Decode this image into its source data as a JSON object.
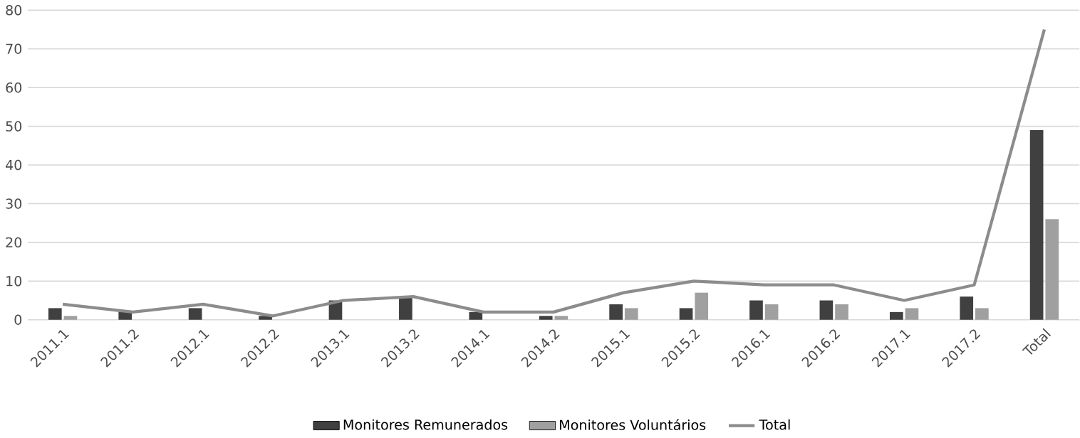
{
  "chart_data": {
    "type": "bar",
    "categories": [
      "2011.1",
      "2011.2",
      "2012.1",
      "2012.2",
      "2013.1",
      "2013.2",
      "2014.1",
      "2014.2",
      "2015.1",
      "2015.2",
      "2016.1",
      "2016.2",
      "2017.1",
      "2017.2",
      "Total"
    ],
    "series": [
      {
        "name": "Monitores Remunerados",
        "color": "#404040",
        "values": [
          3,
          2,
          3,
          1,
          5,
          6,
          2,
          1,
          4,
          3,
          5,
          5,
          2,
          6,
          49
        ]
      },
      {
        "name": "Monitores Voluntários",
        "color": "#a0a0a0",
        "values": [
          1,
          0,
          0,
          0,
          0,
          0,
          0,
          1,
          3,
          7,
          4,
          4,
          3,
          3,
          26
        ]
      },
      {
        "name": "Total",
        "type": "line",
        "color": "#8c8c8c",
        "values": [
          4,
          2,
          4,
          1,
          5,
          6,
          2,
          2,
          7,
          10,
          9,
          9,
          5,
          9,
          75
        ]
      }
    ],
    "ylim": [
      0,
      80
    ],
    "yticks": [
      0,
      10,
      20,
      30,
      40,
      50,
      60,
      70,
      80
    ],
    "grid": "y",
    "legend": "bottom"
  }
}
